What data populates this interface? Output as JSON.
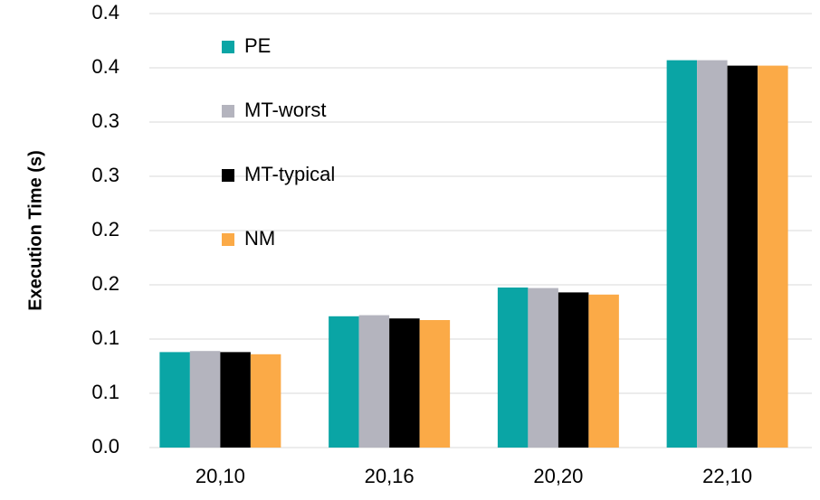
{
  "chart_data": {
    "type": "bar",
    "y_label": "Execution Time (s)",
    "categories": [
      "20,10",
      "20,16",
      "20,20",
      "22,10"
    ],
    "series": [
      {
        "name": "PE",
        "color": "#0aa5a5",
        "values": [
          0.088,
          0.121,
          0.1475,
          0.357
        ]
      },
      {
        "name": "MT-worst",
        "color": "#b4b4be",
        "values": [
          0.089,
          0.122,
          0.147,
          0.357
        ]
      },
      {
        "name": "MT-typical",
        "color": "#000000",
        "values": [
          0.088,
          0.119,
          0.143,
          0.352
        ]
      },
      {
        "name": "NM",
        "color": "#fbaa47",
        "values": [
          0.086,
          0.1175,
          0.141,
          0.352
        ]
      }
    ],
    "ylim": [
      0,
      0.4
    ],
    "yticks": [
      {
        "value": 0,
        "label": "0.0"
      },
      {
        "value": 0.05,
        "label": "0.1"
      },
      {
        "value": 0.1,
        "label": "0.1"
      },
      {
        "value": 0.15,
        "label": "0.2"
      },
      {
        "value": 0.2,
        "label": "0.2"
      },
      {
        "value": 0.25,
        "label": "0.3"
      },
      {
        "value": 0.3,
        "label": "0.3"
      },
      {
        "value": 0.35,
        "label": "0.4"
      },
      {
        "value": 0.4,
        "label": "0.4"
      }
    ],
    "grid": true,
    "legend": "upper left"
  }
}
